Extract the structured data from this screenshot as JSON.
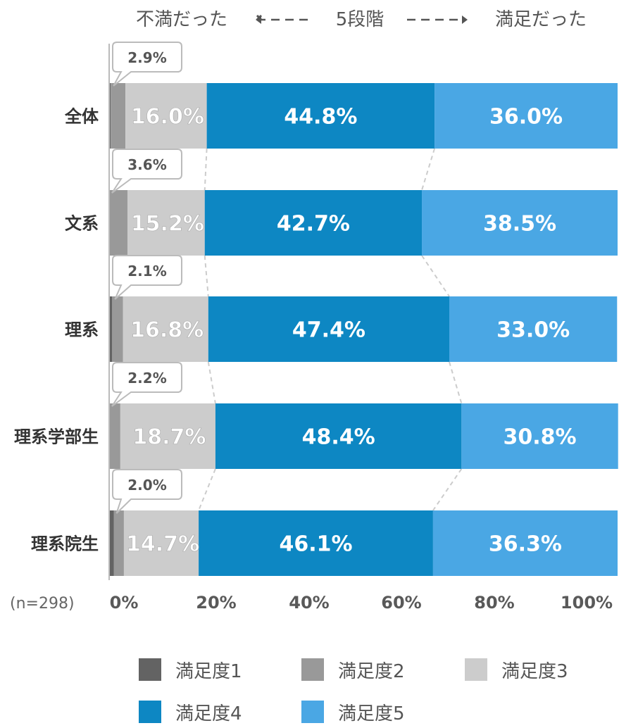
{
  "header": {
    "left": "不満だった",
    "center": "5段階",
    "right": "満足だった"
  },
  "sample_note": "(n=298)",
  "colors": {
    "level1": "#636363",
    "level2": "#999999",
    "level3": "#cccccc",
    "level4": "#0d87c3",
    "level5": "#4aa7e4",
    "label_light": "#ffffff",
    "label_dark": "#ffffff"
  },
  "chart_data": {
    "type": "bar",
    "orientation": "horizontal",
    "stacked": true,
    "percent": true,
    "categories": [
      "全体",
      "文系",
      "理系",
      "理系学部生",
      "理系院生"
    ],
    "series": [
      {
        "name": "満足度1",
        "values": [
          0.3,
          0.0,
          0.6,
          0.0,
          0.9
        ]
      },
      {
        "name": "満足度2",
        "values": [
          2.9,
          3.6,
          2.1,
          2.2,
          2.0
        ]
      },
      {
        "name": "満足度3",
        "values": [
          16.0,
          15.2,
          16.8,
          18.7,
          14.7
        ]
      },
      {
        "name": "満足度4",
        "values": [
          44.8,
          42.7,
          47.4,
          48.4,
          46.1
        ]
      },
      {
        "name": "満足度5",
        "values": [
          36.0,
          38.5,
          33.0,
          30.8,
          36.3
        ]
      }
    ],
    "labels": [
      [
        "2.9%",
        "16.0%",
        "44.8%",
        "36.0%"
      ],
      [
        "3.6%",
        "15.2%",
        "42.7%",
        "38.5%"
      ],
      [
        "2.1%",
        "16.8%",
        "47.4%",
        "33.0%"
      ],
      [
        "2.2%",
        "18.7%",
        "48.4%",
        "30.8%"
      ],
      [
        "2.0%",
        "14.7%",
        "46.1%",
        "36.3%"
      ]
    ],
    "x_ticks": [
      "0%",
      "20%",
      "40%",
      "60%",
      "80%",
      "100%"
    ],
    "xlim": [
      0,
      100
    ],
    "grid": false,
    "legend_position": "bottom"
  }
}
